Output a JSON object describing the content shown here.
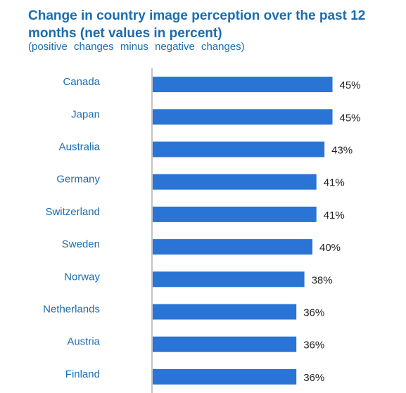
{
  "colors": {
    "bar": "#2a74d6",
    "title": "#1a6db0",
    "axis": "#8a8a8a"
  },
  "chart_data": {
    "type": "bar",
    "orientation": "horizontal",
    "title": "Change in country image perception over the past 12 months (net values in percent)",
    "subtitle": "(positive changes minus negative changes)",
    "xlabel": "",
    "ylabel": "",
    "xlim": [
      0,
      50
    ],
    "grid": false,
    "categories": [
      "Canada",
      "Japan",
      "Australia",
      "Germany",
      "Switzerland",
      "Sweden",
      "Norway",
      "Netherlands",
      "Austria",
      "Finland"
    ],
    "values": [
      45,
      45,
      43,
      41,
      41,
      40,
      38,
      36,
      36,
      36
    ],
    "value_labels": [
      "45%",
      "45%",
      "43%",
      "41%",
      "41%",
      "40%",
      "38%",
      "36%",
      "36%",
      "36%"
    ]
  }
}
